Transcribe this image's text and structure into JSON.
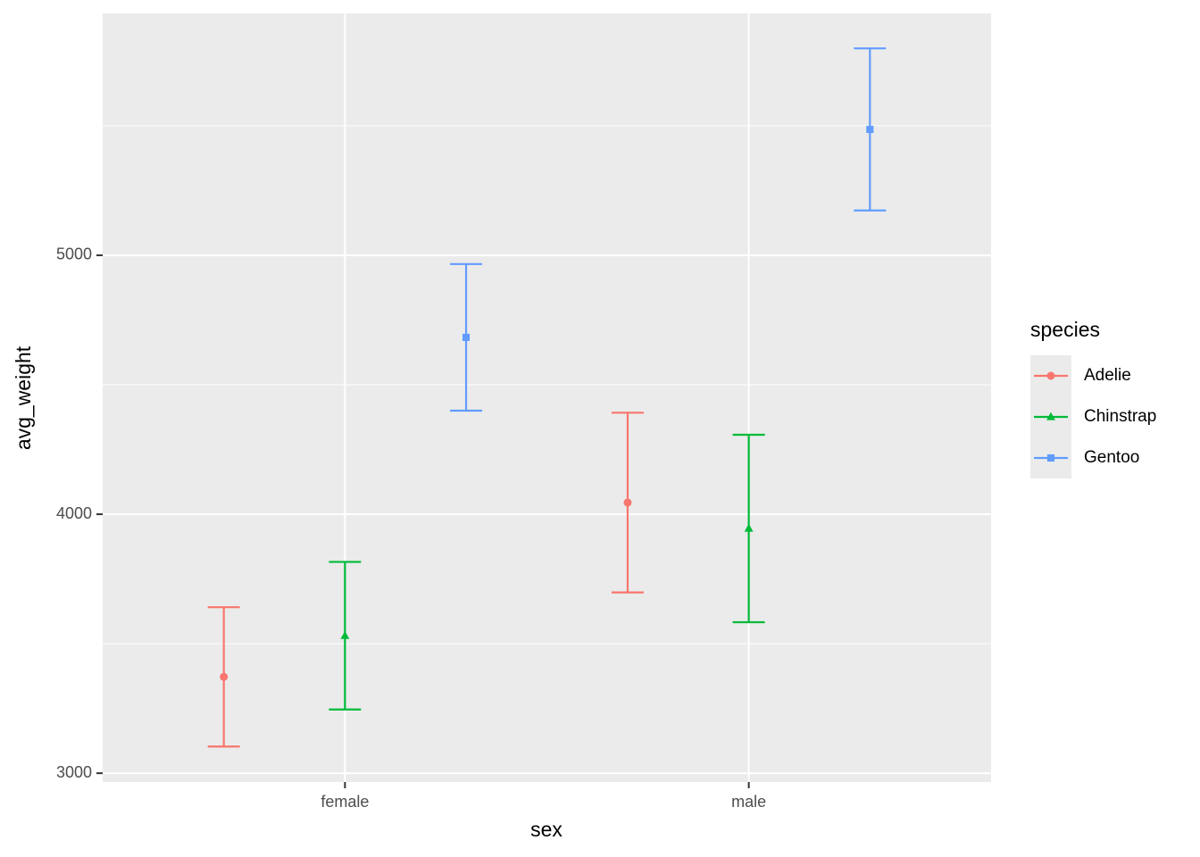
{
  "chart_data": {
    "type": "errorbar",
    "x_label": "sex",
    "y_label": "avg_weight",
    "categories": [
      "female",
      "male"
    ],
    "series": [
      {
        "name": "Adelie",
        "color": "#F8766D",
        "shape": "circle",
        "values": [
          3372,
          4045
        ],
        "errors": [
          269,
          347
        ]
      },
      {
        "name": "Chinstrap",
        "color": "#00BA38",
        "shape": "triangle",
        "values": [
          3531,
          3945
        ],
        "errors": [
          285,
          362
        ]
      },
      {
        "name": "Gentoo",
        "color": "#619CFF",
        "shape": "square",
        "values": [
          4683,
          5486
        ],
        "errors": [
          283,
          313
        ]
      }
    ],
    "ylim": [
      2966,
      5934
    ],
    "yticks": [
      3000,
      4000,
      5000
    ],
    "y_minor_grid": [
      3500,
      4500,
      5500
    ],
    "grid": true,
    "legend_title": "species",
    "legend_position": "right"
  }
}
